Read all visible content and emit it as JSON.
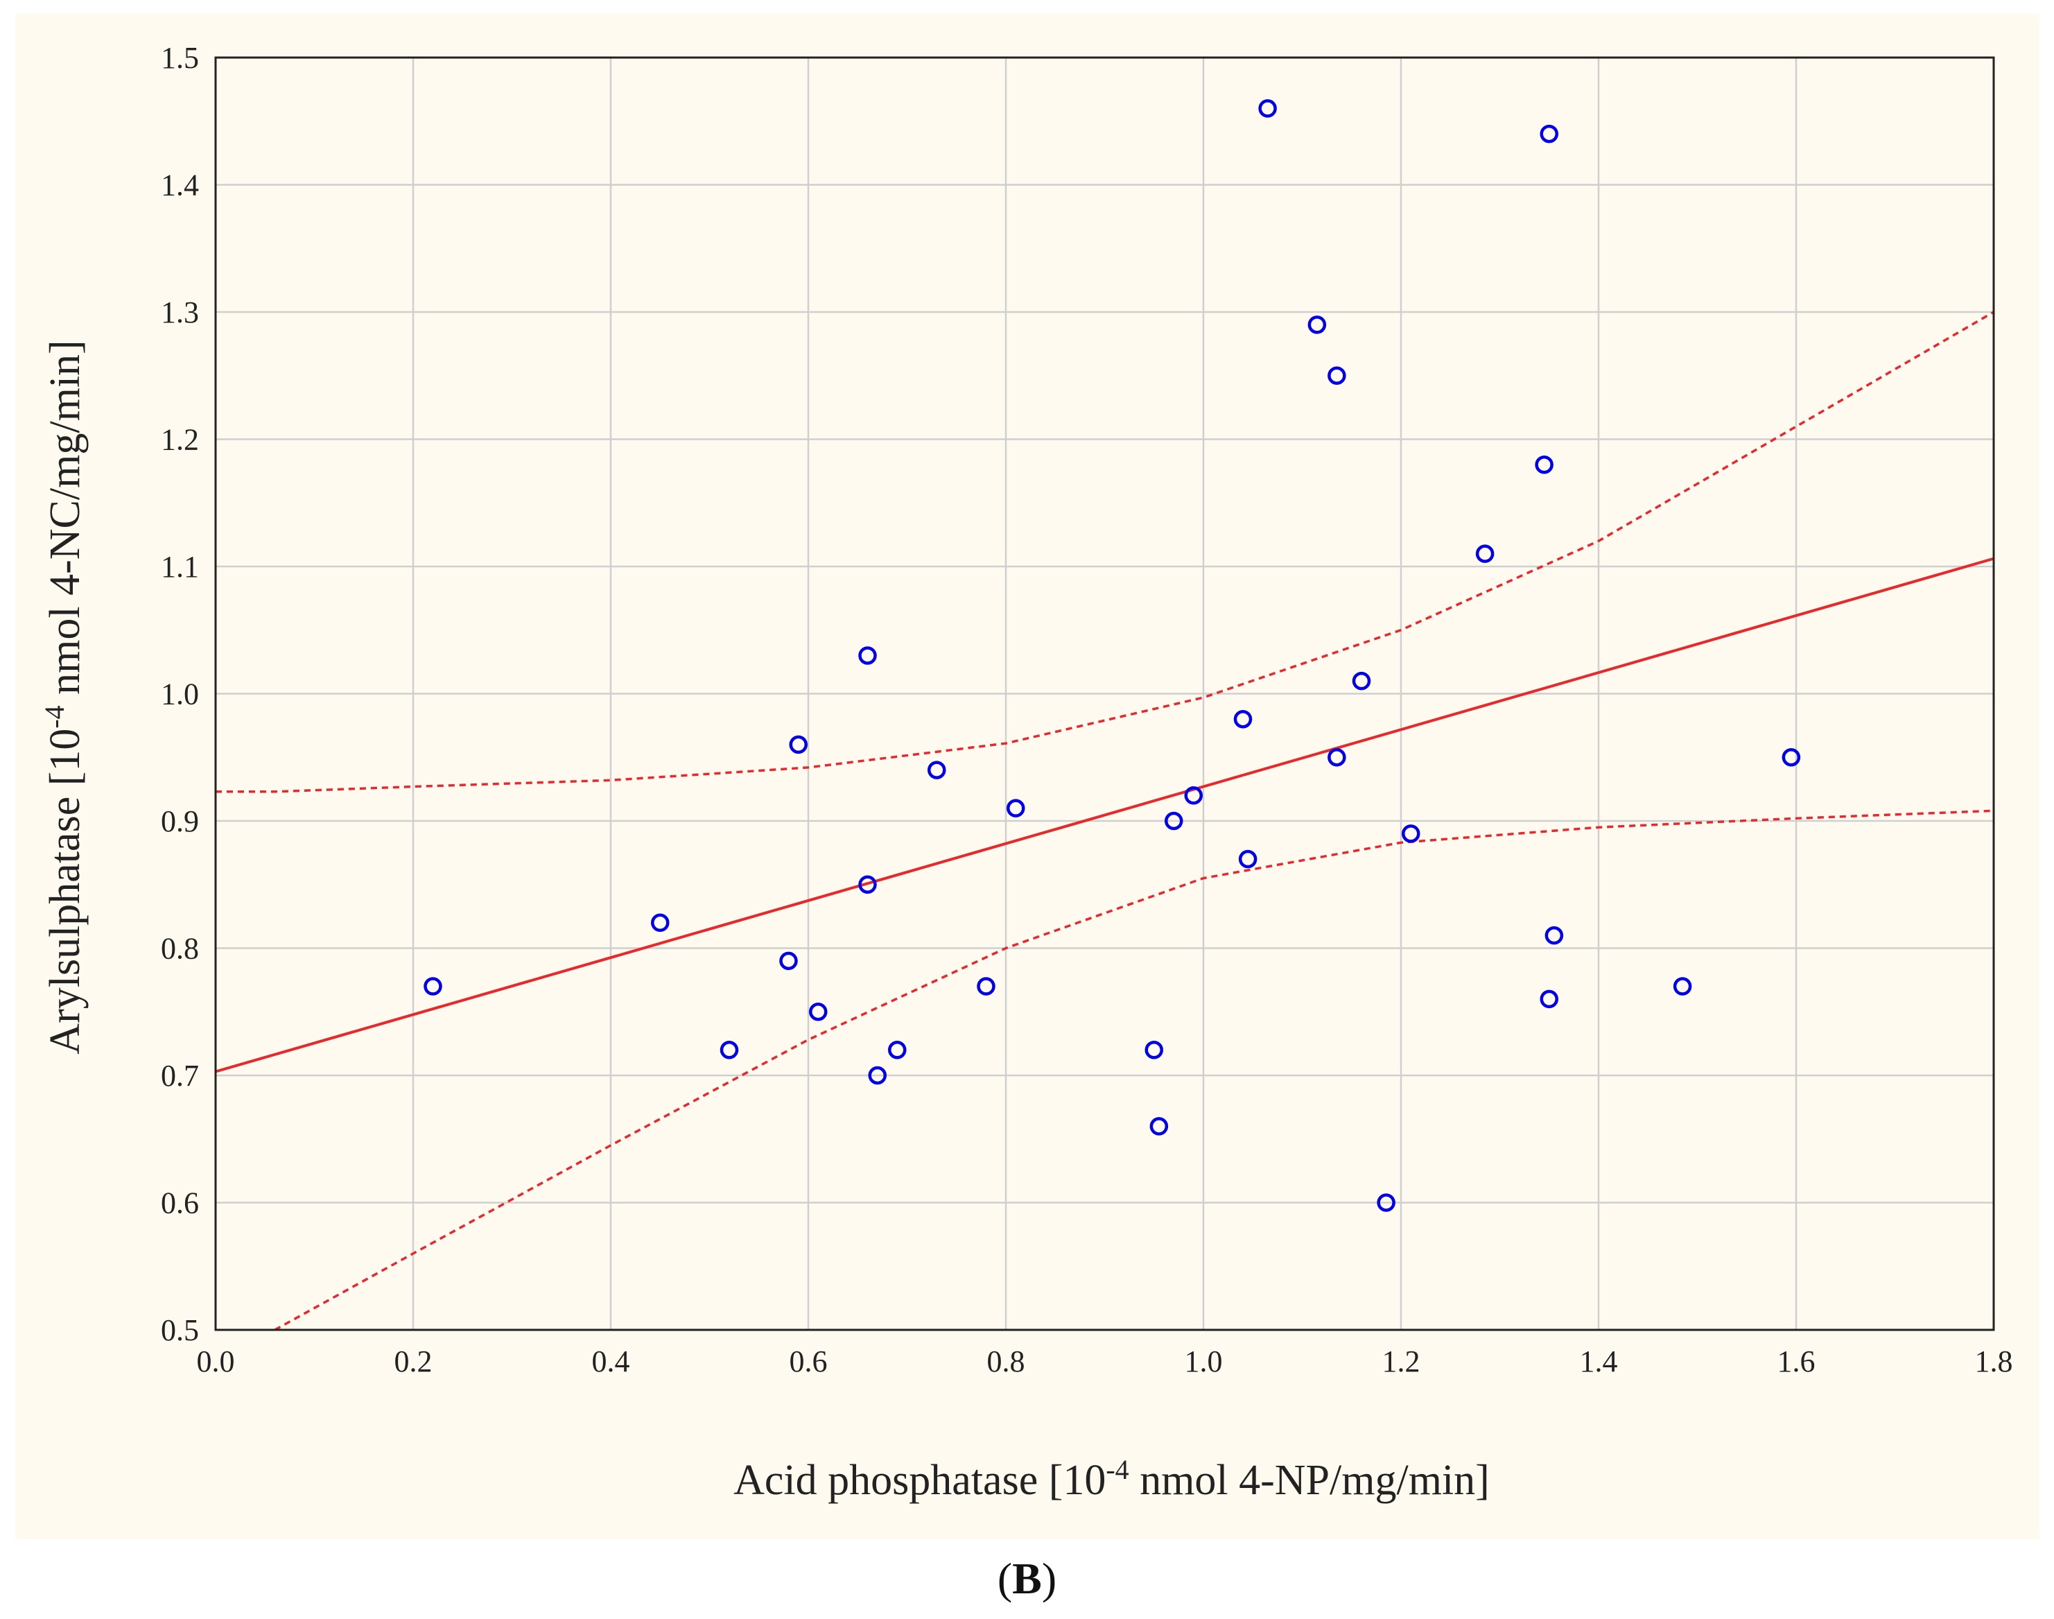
{
  "caption": {
    "open": "(",
    "letter": "B",
    "close": ")"
  },
  "chart_data": {
    "type": "scatter",
    "title": "",
    "xlabel_parts": {
      "before": "Acid phosphatase [10",
      "sup": "-4",
      "after": " nmol 4-NP/mg/min]"
    },
    "ylabel_parts": {
      "before": "Arylsulphatase [10",
      "sup": "-4",
      "after": " nmol 4-NC/mg/min]"
    },
    "xlim": [
      0.0,
      1.8
    ],
    "ylim": [
      0.5,
      1.5
    ],
    "x_ticks": [
      "0.0",
      "0.2",
      "0.4",
      "0.6",
      "0.8",
      "1.0",
      "1.2",
      "1.4",
      "1.6",
      "1.8"
    ],
    "y_ticks": [
      "0.5",
      "0.6",
      "0.7",
      "0.8",
      "0.9",
      "1.0",
      "1.1",
      "1.2",
      "1.3",
      "1.4",
      "1.5"
    ],
    "grid": true,
    "points": [
      {
        "x": 0.22,
        "y": 0.77
      },
      {
        "x": 0.45,
        "y": 0.82
      },
      {
        "x": 0.52,
        "y": 0.72
      },
      {
        "x": 0.58,
        "y": 0.79
      },
      {
        "x": 0.59,
        "y": 0.96
      },
      {
        "x": 0.61,
        "y": 0.75
      },
      {
        "x": 0.66,
        "y": 1.03
      },
      {
        "x": 0.66,
        "y": 0.85
      },
      {
        "x": 0.67,
        "y": 0.7
      },
      {
        "x": 0.69,
        "y": 0.72
      },
      {
        "x": 0.73,
        "y": 0.94
      },
      {
        "x": 0.78,
        "y": 0.77
      },
      {
        "x": 0.81,
        "y": 0.91
      },
      {
        "x": 0.95,
        "y": 0.72
      },
      {
        "x": 0.955,
        "y": 0.66
      },
      {
        "x": 0.97,
        "y": 0.9
      },
      {
        "x": 0.99,
        "y": 0.92
      },
      {
        "x": 1.04,
        "y": 0.98
      },
      {
        "x": 1.045,
        "y": 0.87
      },
      {
        "x": 1.065,
        "y": 1.46
      },
      {
        "x": 1.115,
        "y": 1.29
      },
      {
        "x": 1.135,
        "y": 1.25
      },
      {
        "x": 1.135,
        "y": 0.95
      },
      {
        "x": 1.16,
        "y": 1.01
      },
      {
        "x": 1.185,
        "y": 0.6
      },
      {
        "x": 1.21,
        "y": 0.89
      },
      {
        "x": 1.285,
        "y": 1.11
      },
      {
        "x": 1.345,
        "y": 1.18
      },
      {
        "x": 1.35,
        "y": 1.44
      },
      {
        "x": 1.35,
        "y": 0.76
      },
      {
        "x": 1.355,
        "y": 0.81
      },
      {
        "x": 1.485,
        "y": 0.77
      },
      {
        "x": 1.595,
        "y": 0.95
      }
    ],
    "regression": {
      "intercept": 0.703,
      "slope": 0.224,
      "x_range": [
        0.0,
        1.8
      ]
    },
    "confidence_band": {
      "x": [
        0.06,
        0.2,
        0.4,
        0.6,
        0.8,
        1.0,
        1.2,
        1.4,
        1.6,
        1.8
      ],
      "upper": [
        0.923,
        0.927,
        0.932,
        0.942,
        0.961,
        0.997,
        1.05,
        1.12,
        1.21,
        1.3
      ],
      "lower": [
        0.5,
        0.56,
        0.645,
        0.728,
        0.8,
        0.855,
        0.883,
        0.895,
        0.902,
        0.908
      ],
      "lower_start_x": 0.06
    },
    "colors": {
      "points": "#0000ee",
      "line": "#e8282b",
      "grid": "#cfcfcf",
      "axis": "#222222"
    }
  }
}
